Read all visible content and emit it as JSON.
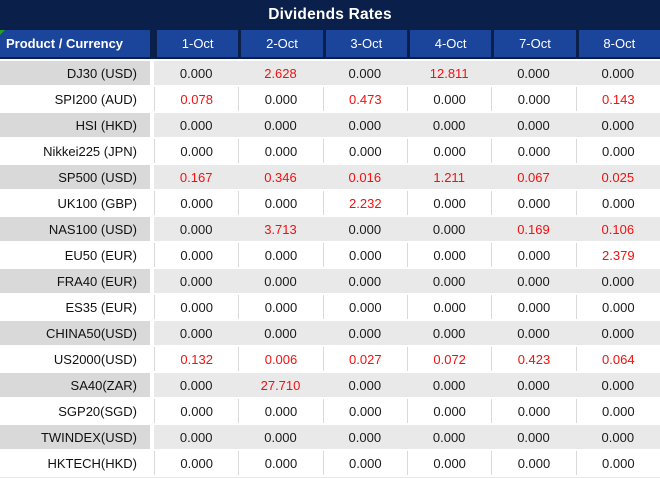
{
  "title": "Dividends Rates",
  "colors": {
    "title_bg": "#0B1F4B",
    "header_bg": "#1A459B",
    "header_text": "#FFFFFF",
    "row_stripe_product_bg": "#D9D9D9",
    "row_stripe_value_bg": "#E9E9E9",
    "grid_line": "#D9D9D9",
    "value_text": "#1A1A1A",
    "red_value_text": "#F50F0F",
    "marker_green": "#21A121"
  },
  "icons": {
    "cell_corner_marker": "green-corner-marker"
  },
  "table": {
    "product_header": "Product / Currency",
    "date_columns": [
      "1-Oct",
      "2-Oct",
      "3-Oct",
      "4-Oct",
      "7-Oct",
      "8-Oct"
    ],
    "rows": [
      {
        "product": "DJ30 (USD)",
        "values": [
          "0.000",
          "2.628",
          "0.000",
          "12.811",
          "0.000",
          "0.000"
        ],
        "red": [
          false,
          true,
          false,
          true,
          false,
          false
        ]
      },
      {
        "product": "SPI200 (AUD)",
        "values": [
          "0.078",
          "0.000",
          "0.473",
          "0.000",
          "0.000",
          "0.143"
        ],
        "red": [
          true,
          false,
          true,
          false,
          false,
          true
        ]
      },
      {
        "product": "HSI (HKD)",
        "values": [
          "0.000",
          "0.000",
          "0.000",
          "0.000",
          "0.000",
          "0.000"
        ],
        "red": [
          false,
          false,
          false,
          false,
          false,
          false
        ]
      },
      {
        "product": "Nikkei225 (JPN)",
        "values": [
          "0.000",
          "0.000",
          "0.000",
          "0.000",
          "0.000",
          "0.000"
        ],
        "red": [
          false,
          false,
          false,
          false,
          false,
          false
        ]
      },
      {
        "product": "SP500 (USD)",
        "values": [
          "0.167",
          "0.346",
          "0.016",
          "1.211",
          "0.067",
          "0.025"
        ],
        "red": [
          true,
          true,
          true,
          true,
          true,
          true
        ]
      },
      {
        "product": "UK100 (GBP)",
        "values": [
          "0.000",
          "0.000",
          "2.232",
          "0.000",
          "0.000",
          "0.000"
        ],
        "red": [
          false,
          false,
          true,
          false,
          false,
          false
        ]
      },
      {
        "product": "NAS100 (USD)",
        "values": [
          "0.000",
          "3.713",
          "0.000",
          "0.000",
          "0.169",
          "0.106"
        ],
        "red": [
          false,
          true,
          false,
          false,
          true,
          true
        ]
      },
      {
        "product": "EU50 (EUR)",
        "values": [
          "0.000",
          "0.000",
          "0.000",
          "0.000",
          "0.000",
          "2.379"
        ],
        "red": [
          false,
          false,
          false,
          false,
          false,
          true
        ]
      },
      {
        "product": "FRA40 (EUR)",
        "values": [
          "0.000",
          "0.000",
          "0.000",
          "0.000",
          "0.000",
          "0.000"
        ],
        "red": [
          false,
          false,
          false,
          false,
          false,
          false
        ]
      },
      {
        "product": "ES35 (EUR)",
        "values": [
          "0.000",
          "0.000",
          "0.000",
          "0.000",
          "0.000",
          "0.000"
        ],
        "red": [
          false,
          false,
          false,
          false,
          false,
          false
        ]
      },
      {
        "product": "CHINA50(USD)",
        "values": [
          "0.000",
          "0.000",
          "0.000",
          "0.000",
          "0.000",
          "0.000"
        ],
        "red": [
          false,
          false,
          false,
          false,
          false,
          false
        ]
      },
      {
        "product": "US2000(USD)",
        "values": [
          "0.132",
          "0.006",
          "0.027",
          "0.072",
          "0.423",
          "0.064"
        ],
        "red": [
          true,
          true,
          true,
          true,
          true,
          true
        ]
      },
      {
        "product": "SA40(ZAR)",
        "values": [
          "0.000",
          "27.710",
          "0.000",
          "0.000",
          "0.000",
          "0.000"
        ],
        "red": [
          false,
          true,
          false,
          false,
          false,
          false
        ]
      },
      {
        "product": "SGP20(SGD)",
        "values": [
          "0.000",
          "0.000",
          "0.000",
          "0.000",
          "0.000",
          "0.000"
        ],
        "red": [
          false,
          false,
          false,
          false,
          false,
          false
        ]
      },
      {
        "product": "TWINDEX(USD)",
        "values": [
          "0.000",
          "0.000",
          "0.000",
          "0.000",
          "0.000",
          "0.000"
        ],
        "red": [
          false,
          false,
          false,
          false,
          false,
          false
        ]
      },
      {
        "product": "HKTECH(HKD)",
        "values": [
          "0.000",
          "0.000",
          "0.000",
          "0.000",
          "0.000",
          "0.000"
        ],
        "red": [
          false,
          false,
          false,
          false,
          false,
          false
        ]
      }
    ]
  }
}
